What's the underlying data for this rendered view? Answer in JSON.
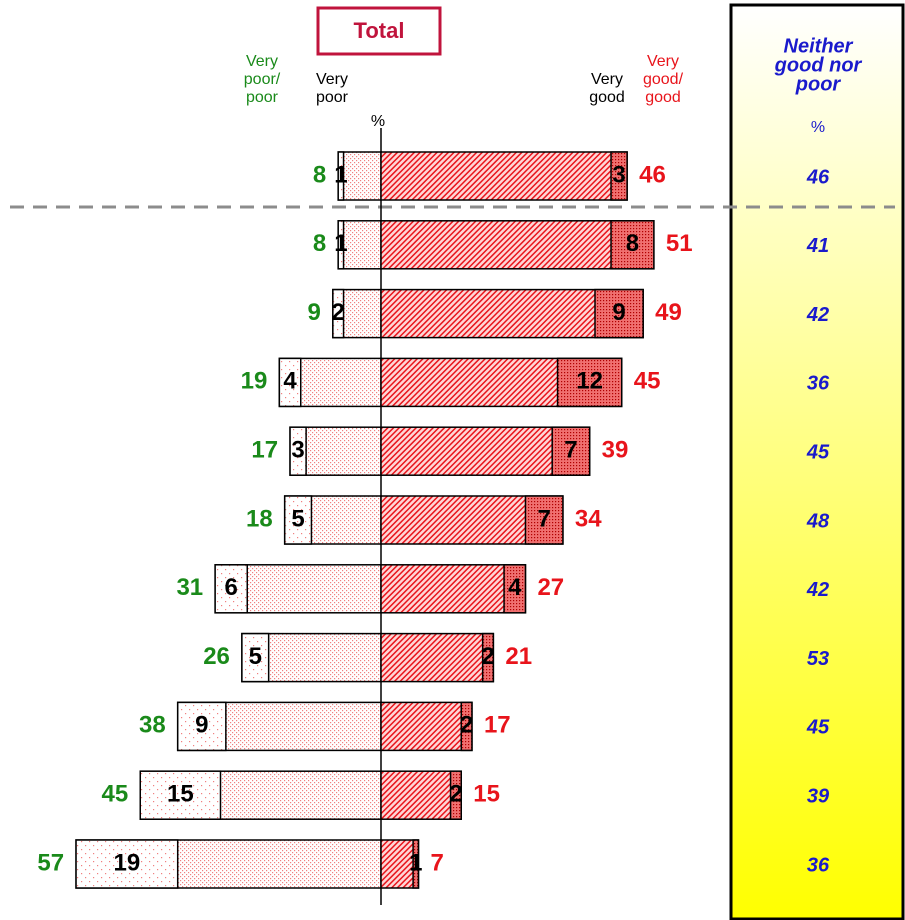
{
  "chart_data": {
    "type": "diverging-bar",
    "title": "Total",
    "unit": "%",
    "series": [
      {
        "name": [
          "Very",
          "poor/",
          "poor"
        ],
        "color": "#1a8a1a",
        "values": [
          8,
          8,
          9,
          19,
          17,
          18,
          31,
          26,
          38,
          45,
          57
        ]
      },
      {
        "name": [
          "Very",
          "poor"
        ],
        "color": "#000000",
        "values": [
          1,
          1,
          2,
          4,
          3,
          5,
          6,
          5,
          9,
          15,
          19
        ]
      },
      {
        "name": [
          "Very",
          "good"
        ],
        "color": "#000000",
        "values": [
          3,
          8,
          9,
          12,
          7,
          7,
          4,
          2,
          2,
          2,
          1
        ]
      },
      {
        "name": [
          "Very",
          "good/",
          "good"
        ],
        "color": "#e8141b",
        "values": [
          46,
          51,
          49,
          45,
          39,
          34,
          27,
          21,
          17,
          15,
          7
        ]
      },
      {
        "name": [
          "Neither",
          "good nor",
          "poor"
        ],
        "color": "#1a1acc",
        "values": [
          46,
          41,
          42,
          36,
          45,
          48,
          42,
          53,
          45,
          39,
          36
        ]
      }
    ]
  }
}
